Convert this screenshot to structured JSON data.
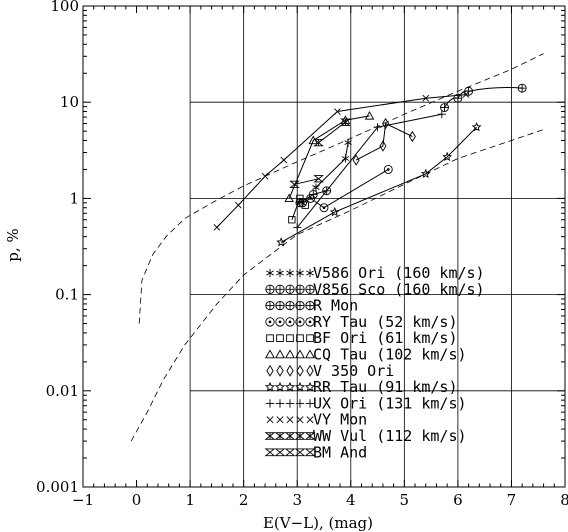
{
  "chart_data": {
    "type": "scatter",
    "xlabel": "E(V−L), (mag)",
    "ylabel": "p, %",
    "xlim": [
      -1,
      8
    ],
    "ylim": [
      0.001,
      100
    ],
    "yscale": "log",
    "grid": true,
    "legend_position": "bottom-right",
    "x_ticks": [
      "−1",
      "0",
      "1",
      "2",
      "3",
      "4",
      "5",
      "6",
      "7",
      "8"
    ],
    "y_ticks": [
      "0.001",
      "0.01",
      "0.1",
      "1",
      "10",
      "100"
    ],
    "series": [
      {
        "name": "V586 Ori (160 km/s)",
        "marker": "asterisk",
        "points": [
          [
            3.35,
            1.3
          ],
          [
            3.9,
            2.6
          ],
          [
            3.95,
            3.8
          ]
        ]
      },
      {
        "name": "V856 Sco (160 km/s)",
        "marker": "plus-circle",
        "points": [
          [
            3.05,
            0.9
          ],
          [
            3.3,
            1.1
          ],
          [
            3.55,
            1.2
          ]
        ]
      },
      {
        "name": "R Mon",
        "marker": "plus-circle",
        "points": [
          [
            5.75,
            8.8
          ],
          [
            6.0,
            11
          ],
          [
            6.2,
            13
          ],
          [
            7.2,
            14
          ]
        ]
      },
      {
        "name": "RY Tau (52 km/s)",
        "marker": "dot-circle",
        "points": [
          [
            3.1,
            0.9
          ],
          [
            3.25,
            1.0
          ],
          [
            3.5,
            0.8
          ],
          [
            4.7,
            2.0
          ]
        ]
      },
      {
        "name": "BF Ori (61 km/s)",
        "marker": "square",
        "points": [
          [
            2.9,
            0.6
          ],
          [
            3.05,
            1.0
          ],
          [
            3.15,
            0.85
          ]
        ]
      },
      {
        "name": "CQ Tau (102 km/s)",
        "marker": "triangle",
        "points": [
          [
            2.85,
            1.0
          ],
          [
            3.3,
            4.0
          ],
          [
            3.9,
            6.5
          ],
          [
            4.35,
            7.2
          ]
        ]
      },
      {
        "name": "V 350 Ori",
        "marker": "diamond",
        "points": [
          [
            4.1,
            2.5
          ],
          [
            4.6,
            3.5
          ],
          [
            4.65,
            6.0
          ],
          [
            5.15,
            4.4
          ]
        ]
      },
      {
        "name": "RR Tau (91 km/s)",
        "marker": "star",
        "points": [
          [
            2.7,
            0.35
          ],
          [
            3.7,
            0.72
          ],
          [
            5.4,
            1.8
          ],
          [
            5.8,
            2.7
          ],
          [
            6.35,
            5.5
          ]
        ]
      },
      {
        "name": "UX Ori (131 km/s)",
        "marker": "plus",
        "points": [
          [
            3.0,
            0.5
          ],
          [
            4.5,
            5.5
          ],
          [
            5.7,
            7.5
          ]
        ]
      },
      {
        "name": "VY Mon",
        "marker": "cross",
        "points": [
          [
            1.5,
            0.5
          ],
          [
            1.9,
            0.85
          ],
          [
            2.4,
            1.7
          ],
          [
            2.75,
            2.5
          ],
          [
            3.75,
            8.0
          ],
          [
            5.4,
            11
          ],
          [
            6.15,
            12
          ]
        ]
      },
      {
        "name": "WW Vul (112 km/s)",
        "marker": "hourglass",
        "points": [
          [
            3.4,
            3.8
          ],
          [
            3.9,
            6.2
          ]
        ]
      },
      {
        "name": "BM And",
        "marker": "hourglass-cross",
        "points": [
          [
            2.95,
            1.4
          ],
          [
            3.4,
            1.6
          ]
        ]
      }
    ],
    "reference_curves": [
      {
        "style": "dashed",
        "points": [
          [
            0.05,
            0.05
          ],
          [
            0.1,
            0.14
          ],
          [
            0.3,
            0.26
          ],
          [
            0.55,
            0.4
          ],
          [
            0.9,
            0.62
          ],
          [
            1.5,
            0.96
          ],
          [
            2.0,
            1.35
          ],
          [
            3.0,
            2.4
          ],
          [
            4.0,
            4.2
          ],
          [
            5.0,
            7.5
          ],
          [
            6.0,
            13
          ],
          [
            7.0,
            22
          ],
          [
            7.6,
            32
          ]
        ]
      },
      {
        "style": "dashed",
        "points": [
          [
            -0.1,
            0.003
          ],
          [
            0.2,
            0.006
          ],
          [
            0.5,
            0.013
          ],
          [
            0.9,
            0.03
          ],
          [
            1.5,
            0.08
          ],
          [
            2.0,
            0.16
          ],
          [
            2.5,
            0.26
          ],
          [
            3.0,
            0.42
          ],
          [
            4.0,
            0.75
          ],
          [
            5.0,
            1.4
          ],
          [
            6.0,
            2.6
          ],
          [
            7.0,
            4.0
          ],
          [
            7.6,
            5.2
          ]
        ]
      }
    ],
    "legend": [
      "V586 Ori (160 km/s)",
      "V856 Sco (160 km/s)",
      "R  Mon",
      "RY  Tau (52 km/s)",
      "BF  Ori (61 km/s)",
      "CQ  Tau (102 km/s)",
      "V 350 Ori",
      "RR  Tau (91 km/s)",
      "UX  Ori (131 km/s)",
      "VY  Mon",
      "WW Vul (112 km/s)",
      "BM  And"
    ]
  }
}
